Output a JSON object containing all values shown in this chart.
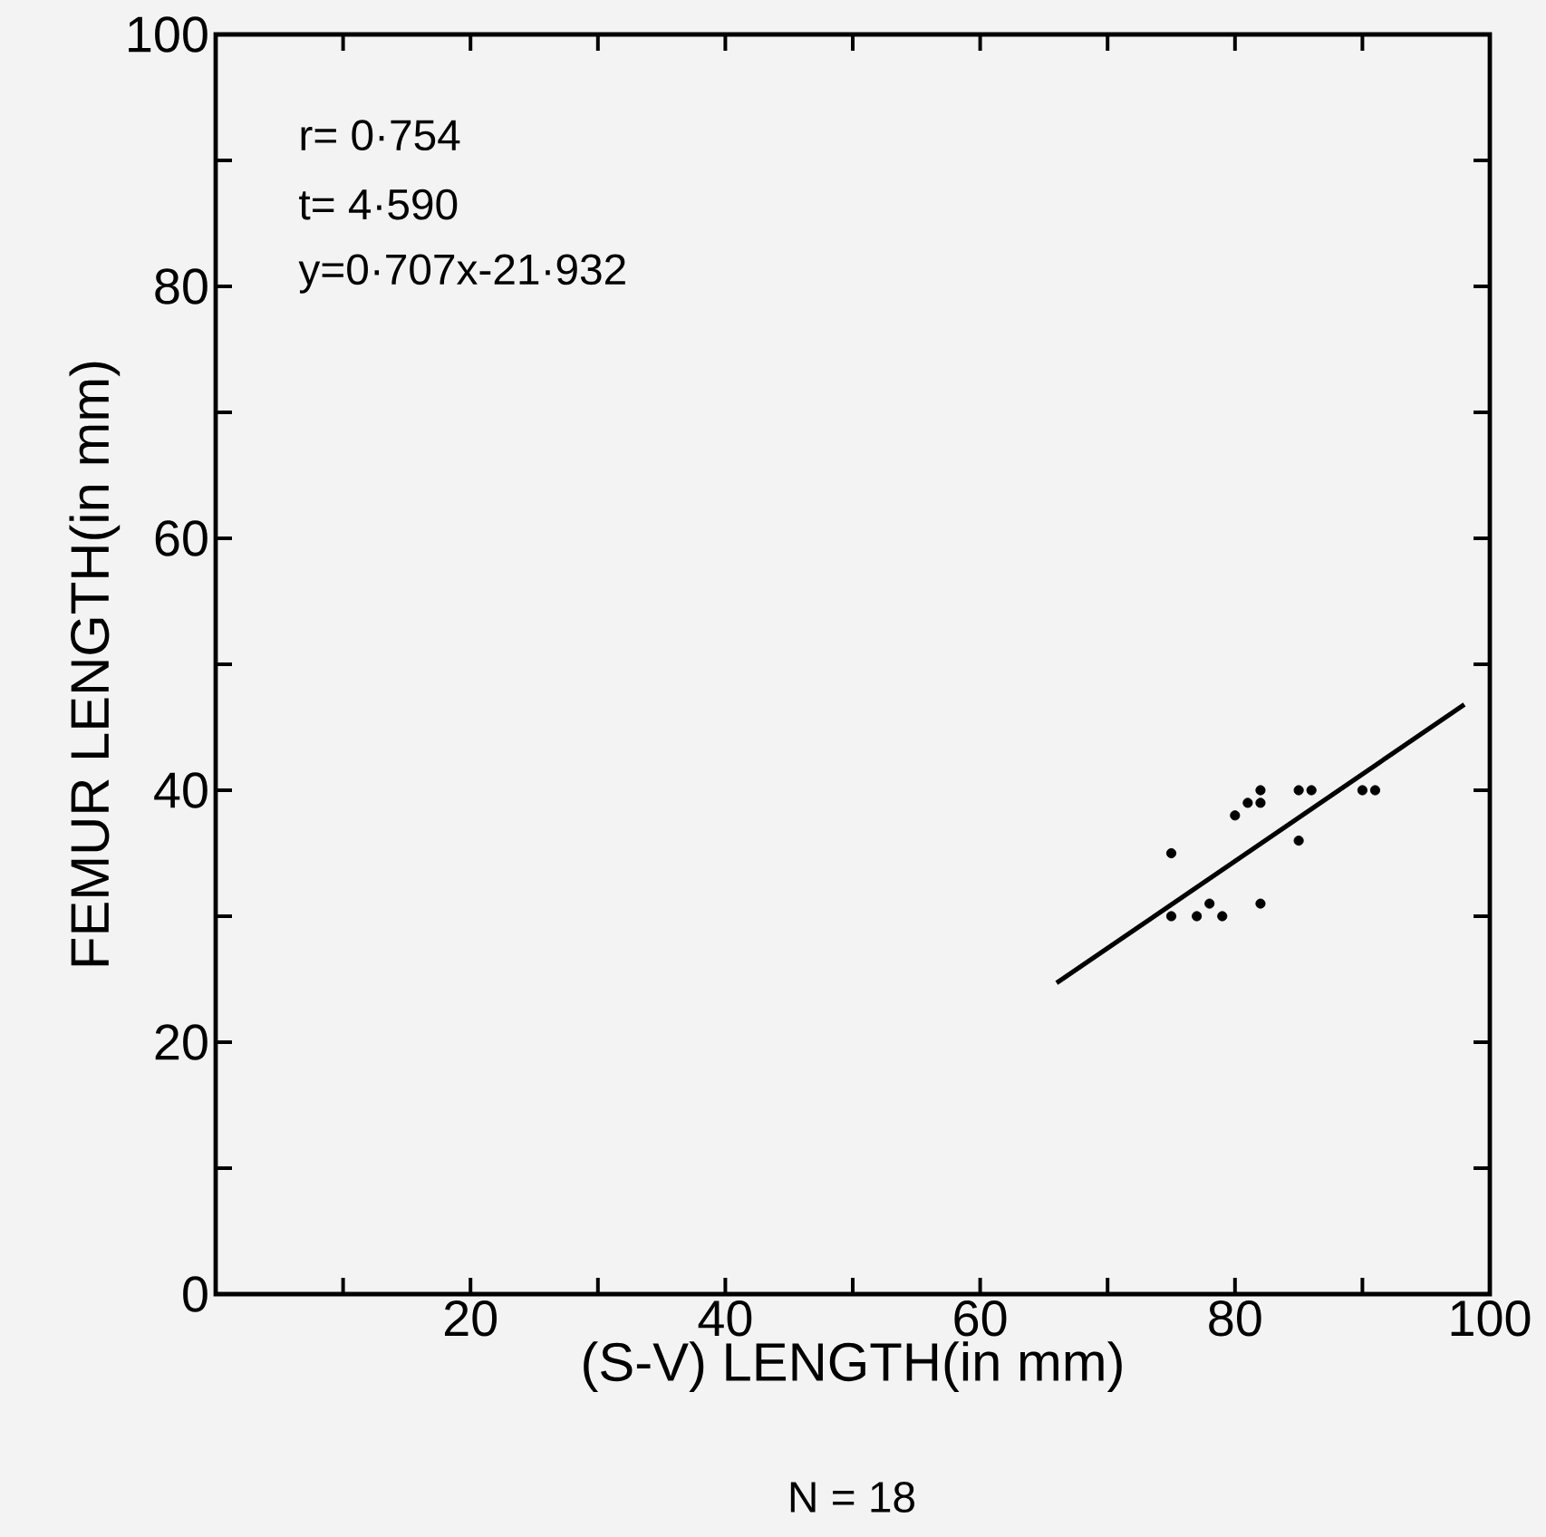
{
  "chart_data": {
    "type": "scatter",
    "xlabel": "(S-V) LENGTH(in mm)",
    "ylabel": "FEMUR LENGTH(in mm)",
    "annotations": [
      "r= 0·754",
      "t= 4·590",
      "y=0·707x-21·932",
      "N = 18"
    ],
    "series": [
      {
        "color": "#000000",
        "marker": "circle",
        "x": [
          75,
          80,
          81,
          82,
          82,
          85,
          86,
          85,
          90,
          91,
          78,
          77,
          79,
          82,
          75
        ],
        "values": [
          35,
          38,
          39,
          40,
          39,
          40,
          40,
          36,
          40,
          40,
          31,
          30,
          30,
          31,
          30
        ]
      },
      {
        "type": "line",
        "color": "#000000",
        "marker": "none",
        "x": [
          66,
          98
        ],
        "values": [
          24.7,
          46.8
        ]
      }
    ],
    "xlim": [
      0,
      100
    ],
    "ylim": [
      0,
      100
    ],
    "xticks": [
      {
        "value": 0,
        "label": null
      },
      {
        "value": 10,
        "label": null
      },
      20,
      {
        "value": 30,
        "label": null
      },
      40,
      {
        "value": 50,
        "label": null
      },
      60,
      {
        "value": 70,
        "label": null
      },
      80,
      {
        "value": 90,
        "label": null
      },
      100
    ],
    "yticks": [
      0,
      {
        "value": 10,
        "label": null
      },
      20,
      {
        "value": 30,
        "label": null
      },
      40,
      {
        "value": 50,
        "label": null
      },
      60,
      {
        "value": 70,
        "label": null
      },
      80,
      {
        "value": 90,
        "label": null
      },
      100
    ],
    "grid": false
  }
}
